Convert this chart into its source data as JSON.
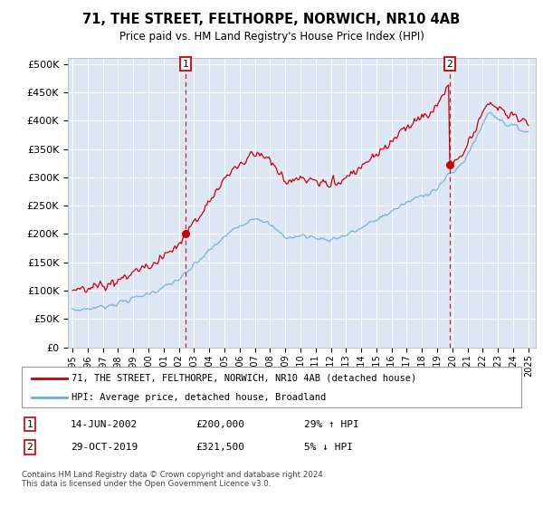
{
  "title": "71, THE STREET, FELTHORPE, NORWICH, NR10 4AB",
  "subtitle": "Price paid vs. HM Land Registry's House Price Index (HPI)",
  "legend_line1": "71, THE STREET, FELTHORPE, NORWICH, NR10 4AB (detached house)",
  "legend_line2": "HPI: Average price, detached house, Broadland",
  "footnote": "Contains HM Land Registry data © Crown copyright and database right 2024.\nThis data is licensed under the Open Government Licence v3.0.",
  "annotation1": {
    "label": "1",
    "date": "14-JUN-2002",
    "price": "£200,000",
    "pct": "29% ↑ HPI"
  },
  "annotation2": {
    "label": "2",
    "date": "29-OCT-2019",
    "price": "£321,500",
    "pct": "5% ↓ HPI"
  },
  "sale1_x": 2002.45,
  "sale1_y": 200000,
  "sale2_x": 2019.83,
  "sale2_y": 321500,
  "hpi_color": "#6baed6",
  "price_color": "#cc0000",
  "bg_color": "#dce6f5",
  "ylim": [
    0,
    510000
  ],
  "yticks": [
    0,
    50000,
    100000,
    150000,
    200000,
    250000,
    300000,
    350000,
    400000,
    450000,
    500000
  ],
  "xlim": [
    1994.7,
    2025.5
  ]
}
